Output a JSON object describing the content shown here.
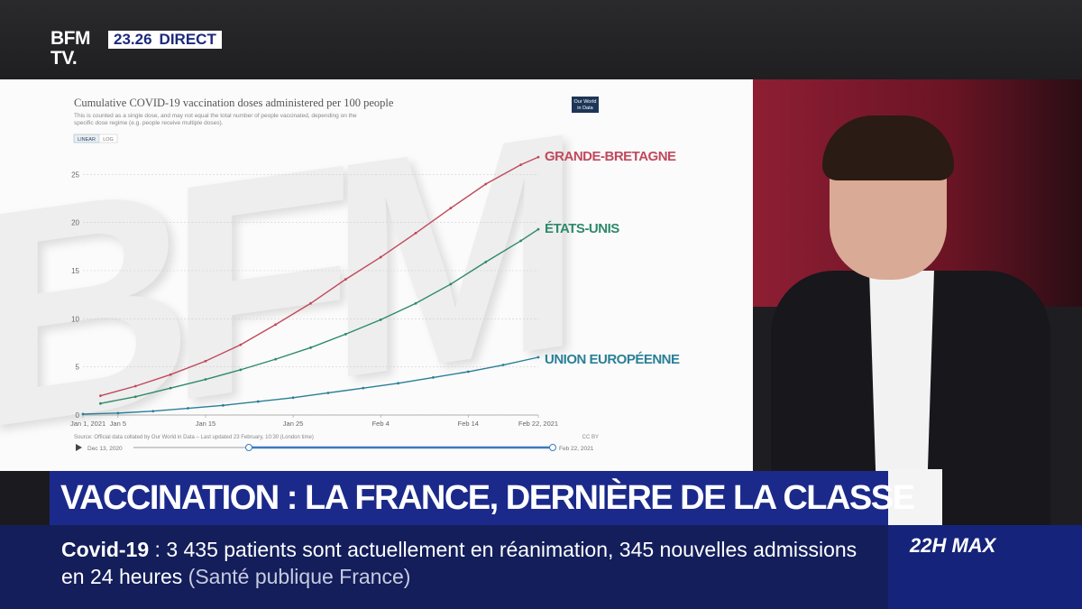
{
  "channel": {
    "logo_line1": "BFM",
    "logo_line2": "TV.",
    "time": "23.26",
    "live_label": "DIRECT"
  },
  "banner": {
    "headline": "VACCINATION : LA FRANCE, DERNIÈRE DE LA CLASSE"
  },
  "ticker": {
    "tag": "Covid-19",
    "sep": " : ",
    "text": "3 435 patients sont actuellement en réanimation, 345 nouvelles admissions en 24 heures",
    "source": "(Santé publique France)"
  },
  "show": {
    "name": "22H MAX"
  },
  "background_mark": "BFM",
  "colors": {
    "gb": "#c04a5c",
    "us": "#2e8a69",
    "eu": "#2a7f97",
    "banner": "#1b2a8a",
    "ticker": "#131e5a",
    "accent": "#1b2a7a"
  },
  "chart_data": {
    "type": "line",
    "title": "Cumulative COVID-19 vaccination doses administered per 100 people",
    "subtitle": "This is counted as a single dose, and may not equal the total number of people vaccinated, depending on the specific dose regime (e.g. people receive multiple doses).",
    "logo_line1": "Our World",
    "logo_line2": "in Data",
    "scale_buttons": [
      "LINEAR",
      "LOG"
    ],
    "source": "Source: Official data collated by Our World in Data – Last updated 23 February, 10:30 (London time)",
    "license": "CC BY",
    "timeline_start": "Dec 13, 2020",
    "timeline_end": "Feb 22, 2021",
    "x_ticks": [
      "Jan 1, 2021",
      "Jan 5",
      "Jan 15",
      "Jan 25",
      "Feb 4",
      "Feb 14",
      "Feb 22, 2021"
    ],
    "x_tick_days": [
      0,
      4,
      14,
      24,
      34,
      44,
      52
    ],
    "y_ticks": [
      0,
      5,
      10,
      15,
      20,
      25
    ],
    "xlim": [
      0,
      52
    ],
    "ylim": [
      0,
      27
    ],
    "grid": true,
    "series": [
      {
        "name": "GRANDE-BRETAGNE",
        "color": "#c04a5c",
        "x": [
          2,
          6,
          10,
          14,
          18,
          22,
          26,
          30,
          34,
          38,
          42,
          46,
          50,
          52
        ],
        "y": [
          2.0,
          3.0,
          4.2,
          5.6,
          7.3,
          9.4,
          11.6,
          14.1,
          16.4,
          18.9,
          21.5,
          24.0,
          26.0,
          26.8
        ]
      },
      {
        "name": "ÉTATS-UNIS",
        "color": "#2e8a69",
        "x": [
          2,
          6,
          10,
          14,
          18,
          22,
          26,
          30,
          34,
          38,
          42,
          46,
          50,
          52
        ],
        "y": [
          1.2,
          1.9,
          2.8,
          3.7,
          4.7,
          5.8,
          7.0,
          8.4,
          9.9,
          11.6,
          13.6,
          15.9,
          18.1,
          19.3
        ]
      },
      {
        "name": "UNION EUROPÉENNE",
        "color": "#2a7f97",
        "x": [
          0,
          4,
          8,
          12,
          16,
          20,
          24,
          28,
          32,
          36,
          40,
          44,
          48,
          52
        ],
        "y": [
          0.1,
          0.2,
          0.4,
          0.7,
          1.0,
          1.4,
          1.8,
          2.3,
          2.8,
          3.3,
          3.9,
          4.5,
          5.2,
          6.0
        ]
      }
    ]
  }
}
